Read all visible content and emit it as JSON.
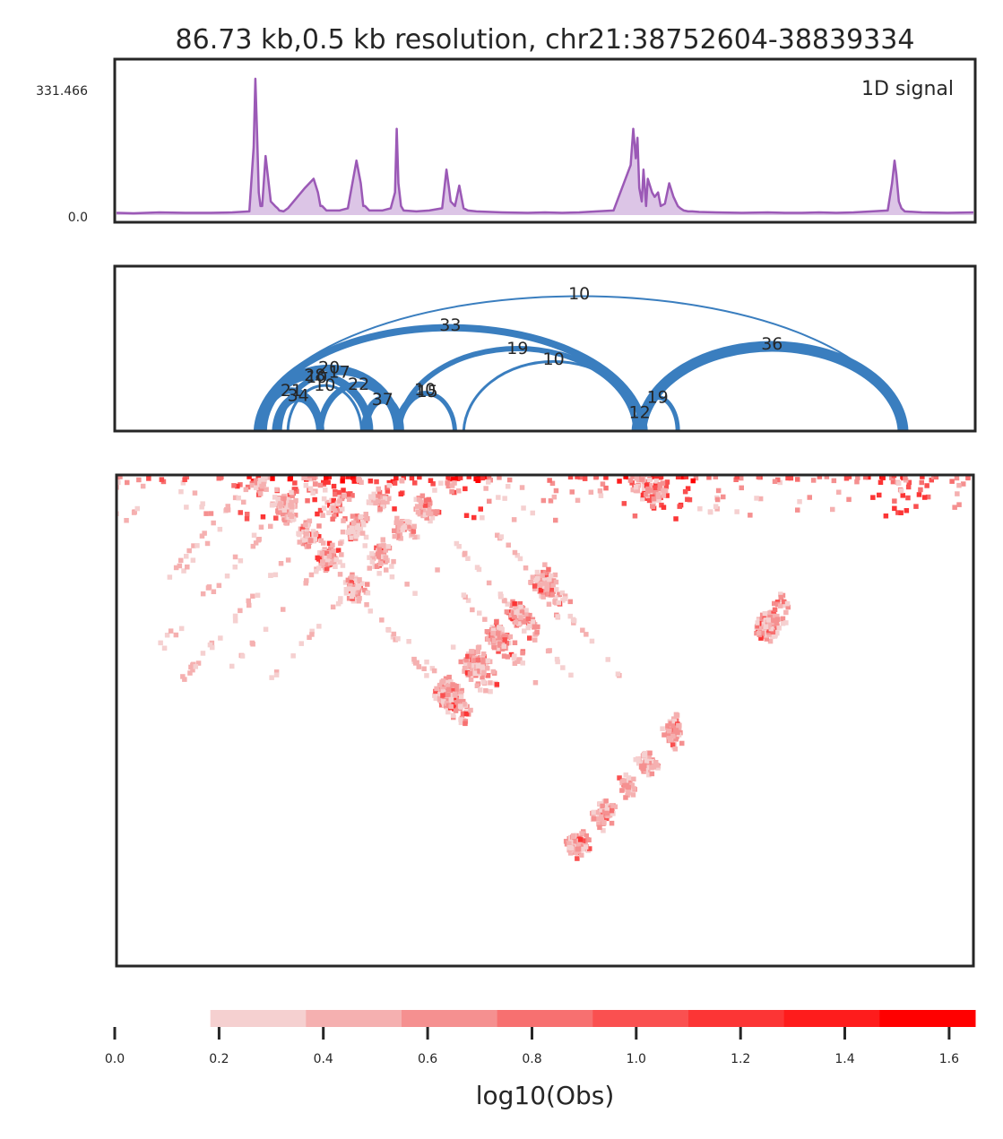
{
  "chart_data": [
    {
      "type": "line",
      "panel": "1D signal track",
      "title": "86.73 kb,0.5 kb resolution, chr21:38752604-38839334",
      "label": "1D signal",
      "ylim": [
        0.0,
        331.466
      ],
      "ytick_labels": [
        "331.466",
        "0.0"
      ],
      "color": "#9b59b6",
      "x": [
        0.0,
        0.02,
        0.05,
        0.08,
        0.11,
        0.135,
        0.155,
        0.16,
        0.162,
        0.164,
        0.166,
        0.168,
        0.17,
        0.174,
        0.18,
        0.185,
        0.188,
        0.19,
        0.195,
        0.2,
        0.22,
        0.23,
        0.235,
        0.238,
        0.24,
        0.245,
        0.25,
        0.26,
        0.27,
        0.28,
        0.285,
        0.288,
        0.29,
        0.295,
        0.3,
        0.31,
        0.32,
        0.325,
        0.327,
        0.329,
        0.332,
        0.335,
        0.35,
        0.365,
        0.38,
        0.385,
        0.388,
        0.39,
        0.395,
        0.4,
        0.405,
        0.41,
        0.42,
        0.45,
        0.48,
        0.5,
        0.52,
        0.54,
        0.56,
        0.58,
        0.6,
        0.603,
        0.606,
        0.608,
        0.61,
        0.613,
        0.615,
        0.618,
        0.62,
        0.625,
        0.628,
        0.632,
        0.635,
        0.64,
        0.645,
        0.65,
        0.655,
        0.658,
        0.662,
        0.667,
        0.672,
        0.68,
        0.7,
        0.73,
        0.76,
        0.78,
        0.8,
        0.82,
        0.84,
        0.86,
        0.9,
        0.905,
        0.908,
        0.91,
        0.913,
        0.916,
        0.92,
        0.94,
        0.97,
        1.0
      ],
      "values": [
        5,
        4,
        6,
        5,
        5,
        6,
        8,
        150,
        300,
        180,
        50,
        20,
        20,
        130,
        30,
        20,
        15,
        10,
        8,
        15,
        60,
        80,
        50,
        20,
        20,
        10,
        10,
        10,
        15,
        120,
        70,
        20,
        20,
        10,
        10,
        10,
        15,
        50,
        190,
        70,
        20,
        10,
        8,
        10,
        15,
        100,
        60,
        30,
        20,
        65,
        15,
        10,
        8,
        6,
        5,
        6,
        5,
        6,
        8,
        10,
        110,
        190,
        125,
        170,
        60,
        30,
        100,
        20,
        80,
        50,
        40,
        50,
        20,
        25,
        70,
        40,
        20,
        15,
        10,
        8,
        8,
        7,
        6,
        5,
        6,
        5,
        5,
        6,
        5,
        6,
        10,
        70,
        120,
        90,
        30,
        15,
        8,
        6,
        5,
        6
      ]
    },
    {
      "type": "arc",
      "panel": "chromatin loops",
      "color": "#3a7ebf",
      "arcs": [
        {
          "start": 0.162,
          "end": 0.918,
          "label": "10",
          "weight": 2
        },
        {
          "start": 0.164,
          "end": 0.615,
          "label": "33",
          "weight": 8
        },
        {
          "start": 0.168,
          "end": 0.295,
          "label": "28",
          "weight": 9
        },
        {
          "start": 0.166,
          "end": 0.33,
          "label": "20",
          "weight": 7
        },
        {
          "start": 0.19,
          "end": 0.33,
          "label": "17",
          "weight": 6
        },
        {
          "start": 0.17,
          "end": 0.238,
          "label": "21",
          "weight": 7
        },
        {
          "start": 0.186,
          "end": 0.238,
          "label": "34",
          "weight": 9
        },
        {
          "start": 0.174,
          "end": 0.293,
          "label": "10",
          "weight": 3
        },
        {
          "start": 0.2,
          "end": 0.286,
          "label": "10",
          "weight": 3
        },
        {
          "start": 0.238,
          "end": 0.327,
          "label": "22",
          "weight": 7
        },
        {
          "start": 0.29,
          "end": 0.331,
          "label": "37",
          "weight": 9
        },
        {
          "start": 0.33,
          "end": 0.395,
          "label": "15",
          "weight": 5
        },
        {
          "start": 0.325,
          "end": 0.395,
          "label": "10",
          "weight": 3
        },
        {
          "start": 0.33,
          "end": 0.606,
          "label": "19",
          "weight": 6
        },
        {
          "start": 0.405,
          "end": 0.615,
          "label": "10",
          "weight": 3
        },
        {
          "start": 0.603,
          "end": 0.618,
          "label": "12",
          "weight": 4
        },
        {
          "start": 0.608,
          "end": 0.655,
          "label": "19",
          "weight": 5
        },
        {
          "start": 0.612,
          "end": 0.918,
          "label": "36",
          "weight": 12
        }
      ]
    },
    {
      "type": "heatmap",
      "panel": "contact matrix (triangular)",
      "colormap": [
        "#ffffff",
        "#f5d0d0",
        "#f5b0b0",
        "#f59090",
        "#f77070",
        "#fa5050",
        "#fc3535",
        "#fe1c1c",
        "#ff0000"
      ],
      "clim": [
        0.0,
        1.65
      ],
      "colorbar": {
        "label": "log10(Obs)",
        "tick_values": [
          0.0,
          0.2,
          0.4,
          0.6,
          0.8,
          1.0,
          1.2,
          1.4,
          1.6
        ],
        "tick_labels": [
          "0.0",
          "0.2",
          "0.4",
          "0.6",
          "0.8",
          "1.0",
          "1.2",
          "1.4",
          "1.6"
        ]
      }
    }
  ]
}
